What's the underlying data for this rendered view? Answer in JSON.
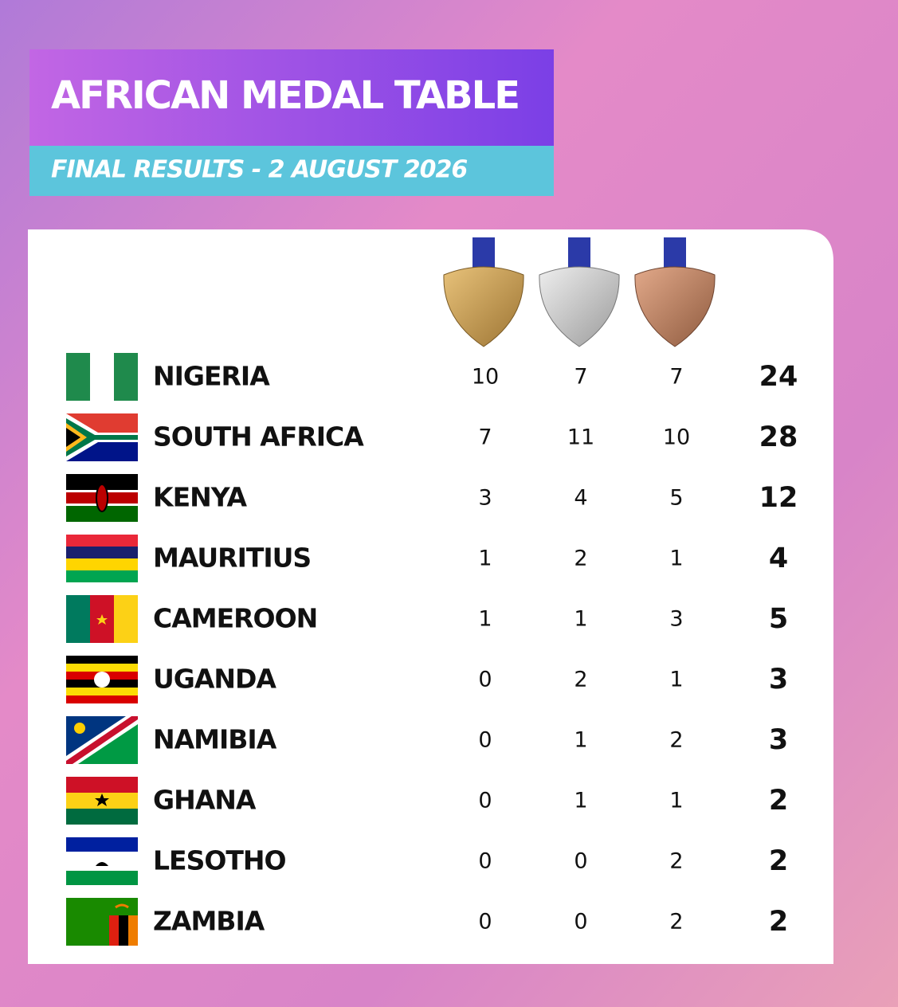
{
  "header": {
    "title": "AFRICAN MEDAL TABLE",
    "subtitle": "FINAL RESULTS - 2 AUGUST 2026"
  },
  "table": {
    "rows": [
      [
        "NIGERIA",
        10,
        7,
        7,
        24
      ],
      [
        "SOUTH AFRICA",
        7,
        11,
        10,
        28
      ],
      [
        "KENYA",
        3,
        4,
        5,
        12
      ],
      [
        "MAURITIUS",
        1,
        2,
        1,
        4
      ],
      [
        "CAMEROON",
        1,
        1,
        3,
        5
      ],
      [
        "UGANDA",
        0,
        2,
        1,
        3
      ],
      [
        "NAMIBIA",
        0,
        1,
        2,
        3
      ],
      [
        "GHANA",
        0,
        1,
        1,
        2
      ],
      [
        "LESOTHO",
        0,
        0,
        2,
        2
      ],
      [
        "ZAMBIA",
        0,
        0,
        2,
        2
      ]
    ]
  }
}
